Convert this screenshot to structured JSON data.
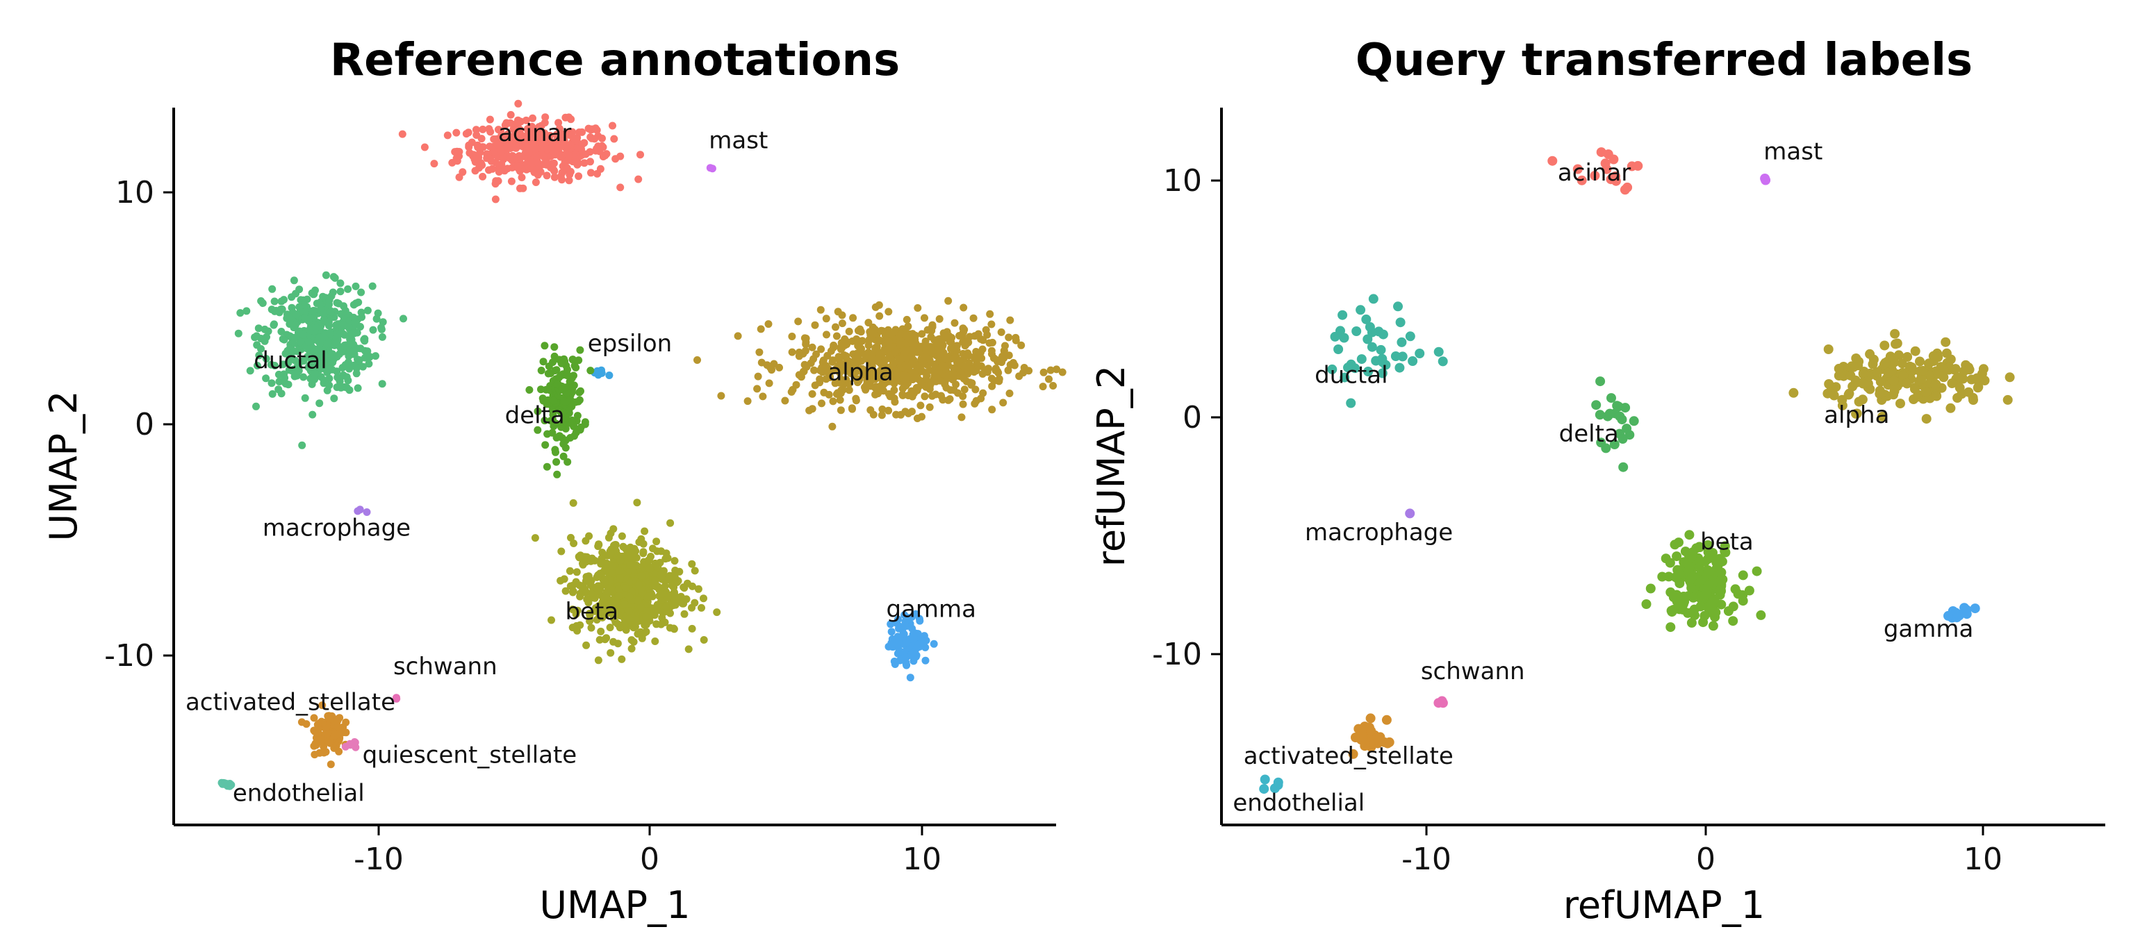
{
  "chart_data": [
    {
      "type": "scatter",
      "title": "Reference annotations",
      "xlabel": "UMAP_1",
      "ylabel": "UMAP_2",
      "xlim": [
        -17.5,
        15
      ],
      "ylim": [
        -17.5,
        12.5
      ],
      "xticks": [
        "-10",
        "0",
        "10"
      ],
      "yticks": [
        "10",
        "0",
        "-10"
      ],
      "grid": false,
      "legend": "none",
      "clusters": [
        {
          "name": "acinar",
          "color": "#F8766D",
          "cx": -4.2,
          "cy": 10.7,
          "sx": 1.4,
          "sy": 0.6,
          "n": 420,
          "label_x": -4.2,
          "label_y": 11.1
        },
        {
          "name": "mast",
          "color": "#CC6FF2",
          "cx": 2.3,
          "cy": 10.0,
          "sx": 0.05,
          "sy": 0.05,
          "n": 2,
          "label_x": 3.3,
          "label_y": 10.8
        },
        {
          "name": "ductal",
          "color": "#52BD7B",
          "cx": -12.2,
          "cy": 2.8,
          "sx": 1.0,
          "sy": 1.1,
          "n": 460,
          "label_x": -13.2,
          "label_y": 1.6
        },
        {
          "name": "epsilon",
          "color": "#3CA5E2",
          "cx": -1.8,
          "cy": 1.4,
          "sx": 0.15,
          "sy": 0.1,
          "n": 6,
          "label_x": -0.7,
          "label_y": 2.3
        },
        {
          "name": "delta",
          "color": "#57A52B",
          "cx": -3.2,
          "cy": 0.3,
          "sx": 0.4,
          "sy": 1.0,
          "n": 170,
          "label_x": -4.2,
          "label_y": -0.7
        },
        {
          "name": "alpha",
          "color": "#B8962E",
          "cx": 9.3,
          "cy": 1.8,
          "sx": 2.0,
          "sy": 0.9,
          "n": 720,
          "label_x": 7.8,
          "label_y": 1.1
        },
        {
          "name": "macrophage",
          "color": "#A87CE6",
          "cx": -10.6,
          "cy": -4.4,
          "sx": 0.1,
          "sy": 0.08,
          "n": 3,
          "label_x": -11.5,
          "label_y": -5.4
        },
        {
          "name": "beta",
          "color": "#A4A82B",
          "cx": -0.8,
          "cy": -7.6,
          "sx": 1.0,
          "sy": 1.0,
          "n": 620,
          "label_x": -2.1,
          "label_y": -8.9
        },
        {
          "name": "gamma",
          "color": "#4AA6EE",
          "cx": 9.6,
          "cy": -9.8,
          "sx": 0.35,
          "sy": 0.5,
          "n": 110,
          "label_x": 10.4,
          "label_y": -8.8
        },
        {
          "name": "schwann",
          "color": "#E76FB6",
          "cx": -9.3,
          "cy": -12.2,
          "sx": 0.04,
          "sy": 0.04,
          "n": 2,
          "label_x": -7.5,
          "label_y": -11.2
        },
        {
          "name": "activated_stellate",
          "color": "#D38F2E",
          "cx": -11.9,
          "cy": -13.6,
          "sx": 0.3,
          "sy": 0.45,
          "n": 90,
          "label_x": -13.2,
          "label_y": -12.7
        },
        {
          "name": "quiescent_stellate",
          "color": "#E57BB9",
          "cx": -11.0,
          "cy": -14.1,
          "sx": 0.12,
          "sy": 0.12,
          "n": 6,
          "label_x": -6.6,
          "label_y": -14.9
        },
        {
          "name": "endothelial",
          "color": "#5DC3A6",
          "cx": -15.6,
          "cy": -15.8,
          "sx": 0.15,
          "sy": 0.12,
          "n": 10,
          "label_x": -12.9,
          "label_y": -16.5
        }
      ]
    },
    {
      "type": "scatter",
      "title": "Query transferred labels",
      "xlabel": "refUMAP_1",
      "ylabel": "refUMAP_2",
      "xlim": [
        -17.5,
        14.5
      ],
      "ylim": [
        -17.5,
        13
      ],
      "xticks": [
        "-10",
        "0",
        "10"
      ],
      "yticks": [
        "10",
        "0",
        "-10"
      ],
      "grid": false,
      "legend": "none",
      "clusters": [
        {
          "name": "acinar",
          "color": "#F8766D",
          "cx": -3.6,
          "cy": 10.4,
          "sx": 0.8,
          "sy": 0.6,
          "n": 16,
          "label_x": -4.0,
          "label_y": 9.9
        },
        {
          "name": "mast",
          "color": "#CC6FF2",
          "cx": 2.2,
          "cy": 9.9,
          "sx": 0.05,
          "sy": 0.05,
          "n": 2,
          "label_x": 3.2,
          "label_y": 10.8
        },
        {
          "name": "ductal",
          "color": "#3FB5A0",
          "cx": -11.8,
          "cy": 2.8,
          "sx": 0.9,
          "sy": 1.0,
          "n": 40,
          "label_x": -12.8,
          "label_y": 1.3
        },
        {
          "name": "delta",
          "color": "#4DB35F",
          "cx": -3.2,
          "cy": -0.1,
          "sx": 0.4,
          "sy": 0.7,
          "n": 22,
          "label_x": -4.2,
          "label_y": -1.2
        },
        {
          "name": "alpha",
          "color": "#B3A133",
          "cx": 7.5,
          "cy": 1.4,
          "sx": 1.5,
          "sy": 0.6,
          "n": 190,
          "label_x": 5.5,
          "label_y": -0.4
        },
        {
          "name": "macrophage",
          "color": "#A87CE6",
          "cx": -10.7,
          "cy": -4.3,
          "sx": 0.05,
          "sy": 0.05,
          "n": 1,
          "label_x": -11.8,
          "label_y": -5.4
        },
        {
          "name": "beta",
          "color": "#72B22E",
          "cx": -0.2,
          "cy": -7.2,
          "sx": 0.7,
          "sy": 0.8,
          "n": 170,
          "label_x": 0.8,
          "label_y": -5.8
        },
        {
          "name": "gamma",
          "color": "#4AA6EE",
          "cx": 9.2,
          "cy": -8.5,
          "sx": 0.25,
          "sy": 0.1,
          "n": 14,
          "label_x": 8.1,
          "label_y": -9.5
        },
        {
          "name": "schwann",
          "color": "#E76FB6",
          "cx": -9.5,
          "cy": -12.3,
          "sx": 0.05,
          "sy": 0.05,
          "n": 3,
          "label_x": -8.4,
          "label_y": -11.3
        },
        {
          "name": "activated_stellate",
          "color": "#D38F2E",
          "cx": -12.1,
          "cy": -13.8,
          "sx": 0.3,
          "sy": 0.4,
          "n": 28,
          "label_x": -12.9,
          "label_y": -14.9
        },
        {
          "name": "endothelial",
          "color": "#3FB5C8",
          "cx": -15.6,
          "cy": -15.8,
          "sx": 0.2,
          "sy": 0.12,
          "n": 5,
          "label_x": -14.7,
          "label_y": -16.9
        }
      ]
    }
  ]
}
